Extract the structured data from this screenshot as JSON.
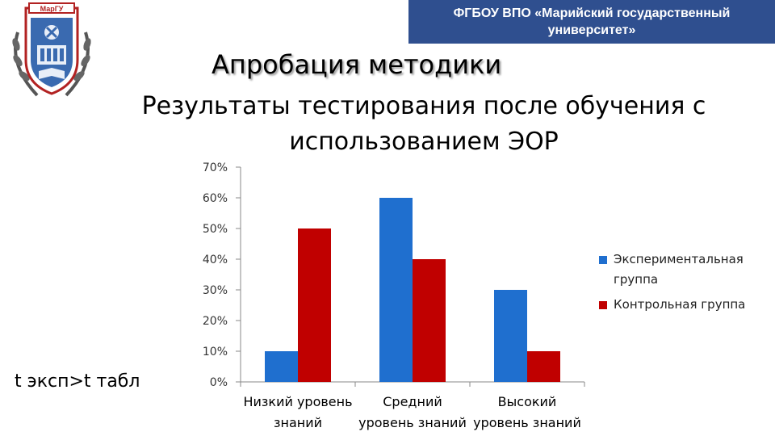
{
  "header": {
    "line1": "ФГБОУ ВПО «Марийский государственный",
    "line2": "университет»"
  },
  "logo": {
    "text": "МарГУ",
    "icon": "university-crest-icon"
  },
  "title": "Апробация методики",
  "subtitle": "Результаты тестирования после обучения с использованием ЭОР",
  "side_note": "t эксп>t табл",
  "chart_data": {
    "type": "bar",
    "categories": [
      [
        "Низкий уровень",
        "знаний"
      ],
      [
        "Средний",
        "уровень знаний"
      ],
      [
        "Высокий",
        "уровень знаний"
      ]
    ],
    "series": [
      {
        "name": "Экспериментальная группа",
        "values": [
          10,
          60,
          30
        ],
        "color": "#1f6fcf"
      },
      {
        "name": "Контрольная группа",
        "values": [
          50,
          40,
          10
        ],
        "color": "#c00000"
      }
    ],
    "y_ticks": [
      "0%",
      "10%",
      "20%",
      "30%",
      "40%",
      "50%",
      "60%",
      "70%"
    ],
    "ylim": [
      0,
      70
    ],
    "grid": false,
    "legend_position": "right",
    "legend": [
      {
        "lines": [
          "Экспериментальная",
          "группа"
        ]
      },
      {
        "lines": [
          "Контрольная группа"
        ]
      }
    ]
  }
}
